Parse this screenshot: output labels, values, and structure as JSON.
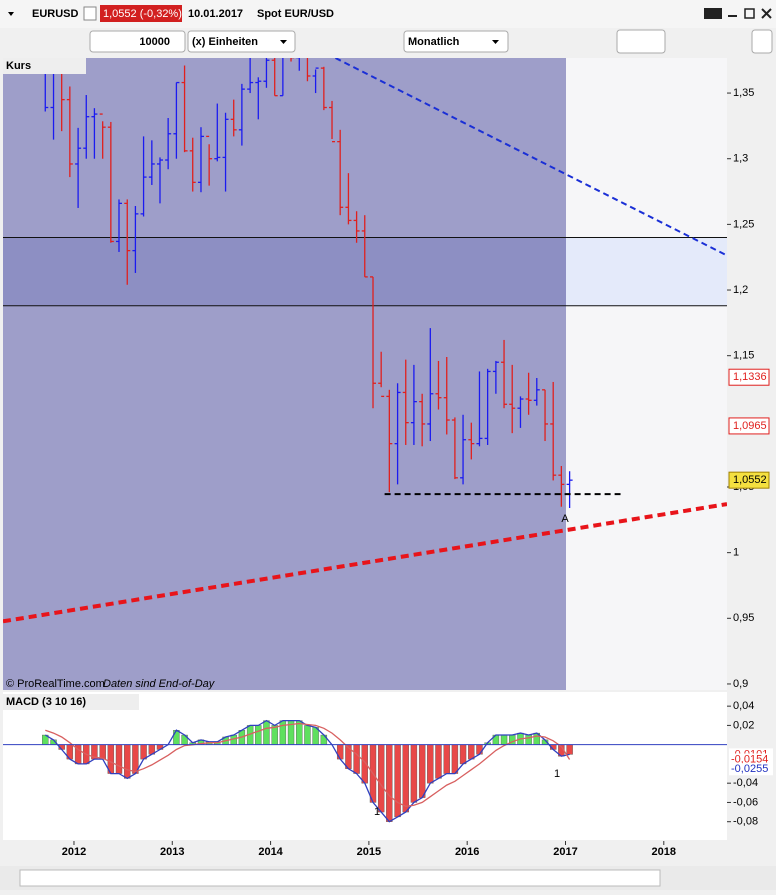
{
  "toolbar": {
    "symbol": "EURUSD",
    "quote": "1,0552 (-0,32%)",
    "date": "10.01.2017",
    "name": "Spot EUR/USD",
    "quantity": "10000",
    "units": "(x) Einheiten",
    "period": "Monatlich"
  },
  "chart_data": [
    {
      "type": "ohlc",
      "title": "Kurs",
      "credit": "© ProRealTime.com",
      "note": "Daten sind End-of-Day",
      "x": [
        2011.708,
        2011.792,
        2011.875,
        2011.958,
        2012.042,
        2012.125,
        2012.208,
        2012.292,
        2012.375,
        2012.458,
        2012.542,
        2012.625,
        2012.708,
        2012.792,
        2012.875,
        2012.958,
        2013.042,
        2013.125,
        2013.208,
        2013.292,
        2013.375,
        2013.458,
        2013.542,
        2013.625,
        2013.708,
        2013.792,
        2013.875,
        2013.958,
        2014.042,
        2014.125,
        2014.208,
        2014.292,
        2014.375,
        2014.458,
        2014.542,
        2014.625,
        2014.708,
        2014.792,
        2014.875,
        2014.958,
        2015.042,
        2015.125,
        2015.208,
        2015.292,
        2015.375,
        2015.458,
        2015.542,
        2015.625,
        2015.708,
        2015.792,
        2015.875,
        2015.958,
        2016.042,
        2016.125,
        2016.208,
        2016.292,
        2016.375,
        2016.458,
        2016.542,
        2016.625,
        2016.708,
        2016.792,
        2016.875,
        2016.958,
        2017.042
      ],
      "high": [
        1.439,
        1.419,
        1.386,
        1.355,
        1.3235,
        1.3485,
        1.3385,
        1.3285,
        1.328,
        1.269,
        1.269,
        1.264,
        1.317,
        1.314,
        1.301,
        1.331,
        1.358,
        1.371,
        1.316,
        1.324,
        1.311,
        1.342,
        1.335,
        1.345,
        1.357,
        1.383,
        1.362,
        1.39,
        1.378,
        1.382,
        1.397,
        1.39,
        1.399,
        1.368,
        1.37,
        1.344,
        1.322,
        1.289,
        1.26,
        1.257,
        1.21,
        1.153,
        1.124,
        1.129,
        1.147,
        1.143,
        1.121,
        1.171,
        1.146,
        1.149,
        1.103,
        1.105,
        1.099,
        1.138,
        1.14,
        1.146,
        1.162,
        1.143,
        1.119,
        1.137,
        1.133,
        1.124,
        1.13,
        1.066,
        1.062
      ],
      "low": [
        1.336,
        1.3145,
        1.321,
        1.286,
        1.2625,
        1.3,
        1.3,
        1.3,
        1.236,
        1.229,
        1.204,
        1.213,
        1.256,
        1.28,
        1.266,
        1.292,
        1.3,
        1.305,
        1.275,
        1.2745,
        1.2795,
        1.298,
        1.275,
        1.317,
        1.31,
        1.35,
        1.33,
        1.354,
        1.348,
        1.348,
        1.374,
        1.367,
        1.359,
        1.35,
        1.337,
        1.315,
        1.257,
        1.25,
        1.236,
        1.21,
        1.11,
        1.126,
        1.046,
        1.052,
        1.082,
        1.082,
        1.081,
        1.085,
        1.109,
        1.09,
        1.056,
        1.052,
        1.071,
        1.081,
        1.082,
        1.121,
        1.11,
        1.091,
        1.095,
        1.105,
        1.112,
        1.085,
        1.055,
        1.035,
        1.034
      ],
      "close": [
        1.339,
        1.386,
        1.345,
        1.296,
        1.308,
        1.332,
        1.334,
        1.324,
        1.237,
        1.266,
        1.23,
        1.258,
        1.286,
        1.296,
        1.299,
        1.319,
        1.358,
        1.306,
        1.282,
        1.317,
        1.3,
        1.301,
        1.33,
        1.322,
        1.353,
        1.358,
        1.359,
        1.375,
        1.348,
        1.38,
        1.377,
        1.387,
        1.363,
        1.369,
        1.339,
        1.313,
        1.263,
        1.253,
        1.245,
        1.21,
        1.129,
        1.119,
        1.083,
        1.122,
        1.099,
        1.115,
        1.098,
        1.121,
        1.118,
        1.101,
        1.057,
        1.086,
        1.083,
        1.087,
        1.138,
        1.145,
        1.113,
        1.11,
        1.117,
        1.116,
        1.124,
        1.098,
        1.059,
        1.052,
        1.0552
      ],
      "up_color": "#1b1bf0",
      "down_color": "#e0201e",
      "xlim": [
        2011.278,
        2018.643
      ],
      "xticks": [
        2012,
        2013,
        2014,
        2015,
        2016,
        2017,
        2018
      ],
      "ylim": [
        0.8954,
        1.3767
      ],
      "yticks": [
        {
          "value": 0.9,
          "label": "0,9"
        },
        {
          "value": 0.95,
          "label": "0,95"
        },
        1,
        {
          "value": 1.05,
          "label": "1,05"
        },
        {
          "value": 1.15,
          "label": "1,15"
        },
        {
          "value": 1.2,
          "label": "1,2"
        },
        {
          "value": 1.25,
          "label": "1,25"
        },
        {
          "value": 1.3,
          "label": "1,3"
        },
        {
          "value": 1.35,
          "label": "1,35"
        }
      ],
      "hlines": [
        1.24,
        1.188
      ],
      "trendlines": [
        {
          "x": [
            2014.66,
            2018.643
          ],
          "y": [
            1.3767,
            1.2263
          ],
          "color": "#1a2fd6"
        },
        {
          "x": [
            2011.278,
            2018.643
          ],
          "y": [
            0.9477,
            1.037
          ],
          "color": "#e8141a"
        },
        {
          "x": [
            2015.16,
            2017.56
          ],
          "y": [
            1.0446,
            1.0446
          ],
          "color": "#000000"
        }
      ],
      "price_labels": [
        {
          "value": 1.1336,
          "label": "1,1336",
          "color": "#e0201e"
        },
        {
          "value": 1.0965,
          "label": "1,0965",
          "color": "#e0201e"
        },
        {
          "value": 1.0552,
          "label": "1,0552",
          "color": "#000000"
        }
      ],
      "annotations": [
        "A"
      ]
    },
    {
      "type": "macd",
      "title": "MACD (3 10 16)",
      "histogram": [
        0.01,
        0.005,
        -0.005,
        -0.015,
        -0.02,
        -0.02,
        -0.015,
        -0.015,
        -0.03,
        -0.03,
        -0.035,
        -0.03,
        -0.015,
        -0.01,
        -0.005,
        0.0,
        0.015,
        0.01,
        0.002,
        0.005,
        0.003,
        0.003,
        0.008,
        0.01,
        0.015,
        0.02,
        0.02,
        0.025,
        0.02,
        0.025,
        0.025,
        0.025,
        0.02,
        0.018,
        0.01,
        0.0,
        -0.015,
        -0.025,
        -0.03,
        -0.04,
        -0.06,
        -0.07,
        -0.08,
        -0.075,
        -0.07,
        -0.06,
        -0.055,
        -0.04,
        -0.035,
        -0.03,
        -0.03,
        -0.02,
        -0.015,
        -0.01,
        0.002,
        0.01,
        0.01,
        0.01,
        0.012,
        0.01,
        0.012,
        0.005,
        -0.005,
        -0.012,
        -0.0101
      ],
      "signal": [
        0.015,
        0.012,
        0.008,
        0.002,
        -0.005,
        -0.01,
        -0.013,
        -0.014,
        -0.018,
        -0.022,
        -0.026,
        -0.028,
        -0.025,
        -0.021,
        -0.016,
        -0.011,
        -0.005,
        -0.001,
        0.0,
        0.001,
        0.002,
        0.002,
        0.004,
        0.006,
        0.008,
        0.011,
        0.014,
        0.017,
        0.018,
        0.02,
        0.021,
        0.022,
        0.021,
        0.02,
        0.017,
        0.012,
        0.005,
        -0.003,
        -0.01,
        -0.018,
        -0.03,
        -0.042,
        -0.053,
        -0.06,
        -0.064,
        -0.063,
        -0.06,
        -0.054,
        -0.048,
        -0.042,
        -0.038,
        -0.032,
        -0.026,
        -0.02,
        -0.013,
        -0.006,
        -0.001,
        0.003,
        0.006,
        0.007,
        0.009,
        0.008,
        0.004,
        -0.002,
        -0.0154
      ],
      "up_color": "#5ee05e",
      "down_color": "#e84848",
      "line_color": "#3040c0",
      "signal_color": "#d86060",
      "ylim": [
        -0.099,
        0.0547
      ],
      "yticks": [
        {
          "value": 0.04,
          "label": "0,04"
        },
        {
          "value": 0.02,
          "label": "0,02"
        },
        {
          "value": -0.04,
          "label": "-0,04"
        },
        {
          "value": -0.06,
          "label": "-0,06"
        },
        {
          "value": -0.08,
          "label": "-0,08"
        }
      ],
      "value_labels": [
        {
          "value": -0.0101,
          "label": "-0,0101",
          "color": "#e0201e"
        },
        {
          "value": -0.0154,
          "label": "-0,0154",
          "color": "#e0201e"
        },
        {
          "value": -0.0255,
          "label": "-0,0255",
          "color": "#2030c0"
        }
      ],
      "annotations": [
        "1",
        "1"
      ]
    }
  ]
}
